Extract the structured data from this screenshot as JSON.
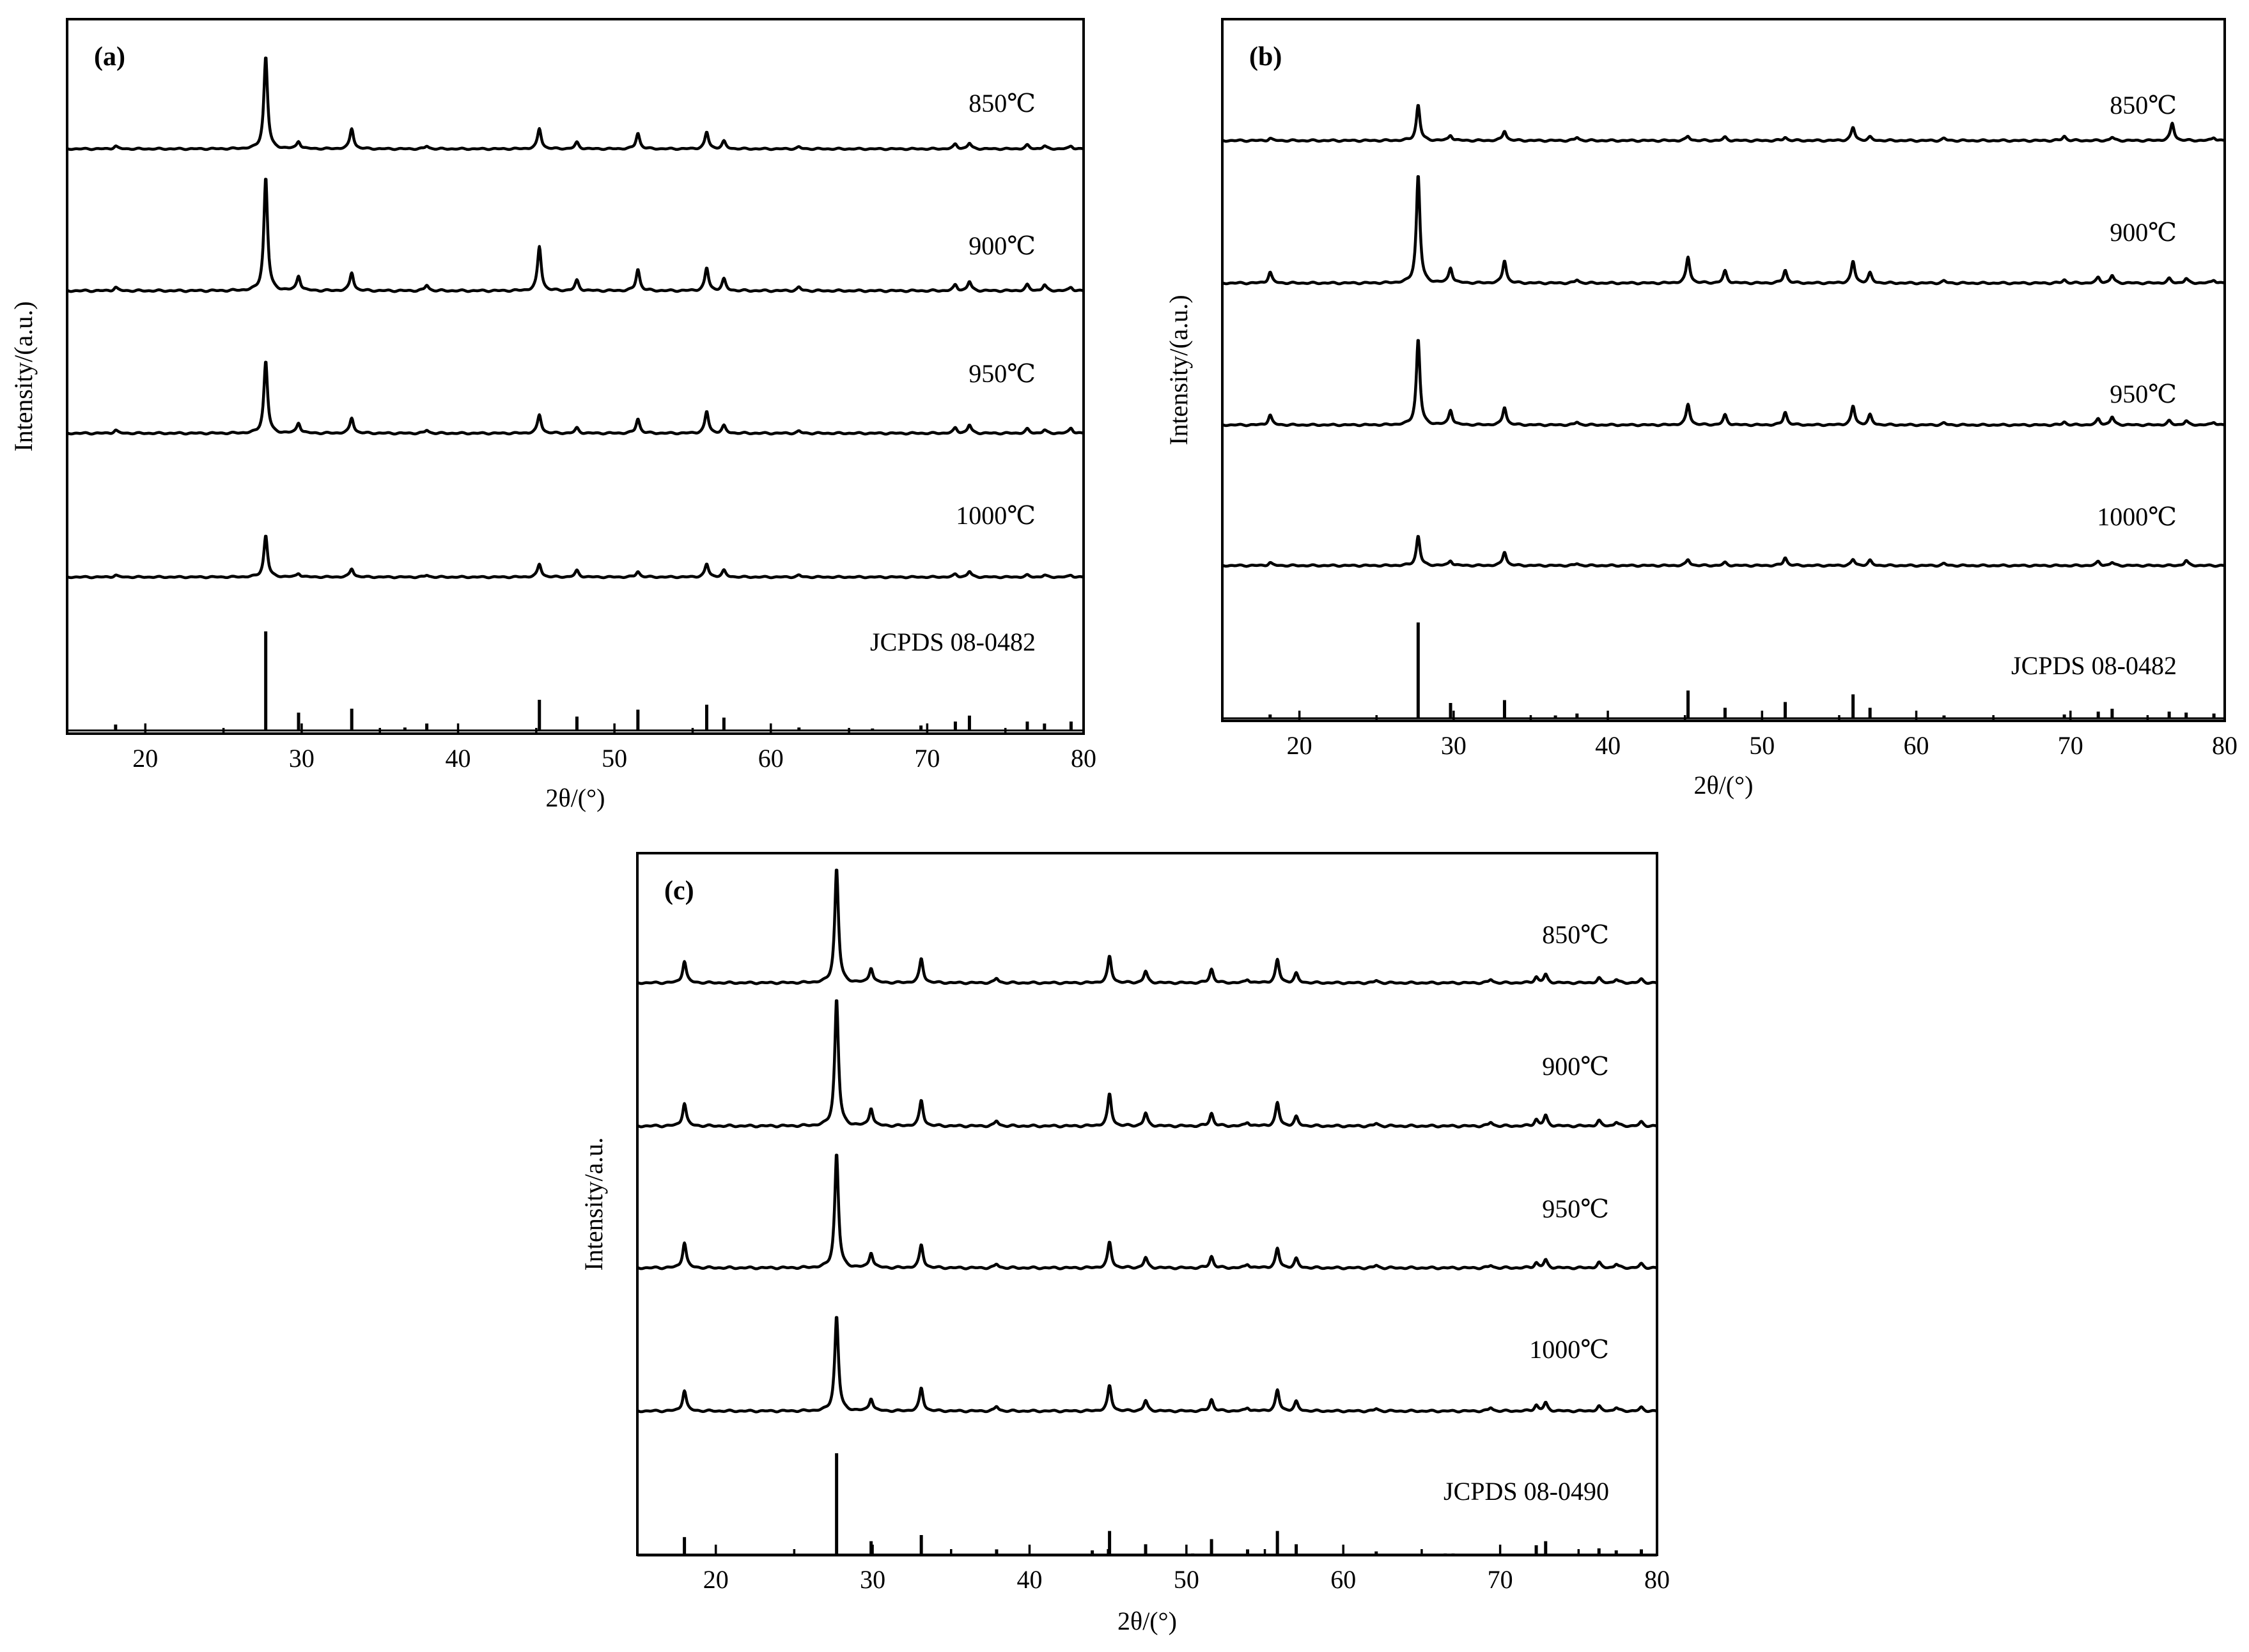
{
  "figure_description_labels": {
    "panels": [
      "(a)",
      "(b)",
      "(c)"
    ]
  },
  "chart_data": [
    {
      "type": "line",
      "panel_label": "(a)",
      "title": "",
      "xlabel": "2θ/(°)",
      "ylabel": "Intensity/(a.u.)",
      "xlim": [
        15,
        80
      ],
      "xticks": [
        20,
        30,
        40,
        50,
        60,
        70,
        80
      ],
      "grid": false,
      "series": [
        {
          "name": "850℃",
          "peaks": [
            [
              18.1,
              0.03
            ],
            [
              27.7,
              1.0
            ],
            [
              29.8,
              0.08
            ],
            [
              33.2,
              0.22
            ],
            [
              38.0,
              0.03
            ],
            [
              45.2,
              0.22
            ],
            [
              47.6,
              0.07
            ],
            [
              51.5,
              0.17
            ],
            [
              55.9,
              0.18
            ],
            [
              57.0,
              0.08
            ],
            [
              61.8,
              0.02
            ],
            [
              71.8,
              0.05
            ],
            [
              72.7,
              0.06
            ],
            [
              76.4,
              0.04
            ],
            [
              77.5,
              0.03
            ],
            [
              79.2,
              0.03
            ]
          ]
        },
        {
          "name": "900℃",
          "peaks": [
            [
              18.1,
              0.03
            ],
            [
              27.7,
              1.0
            ],
            [
              29.8,
              0.13
            ],
            [
              33.2,
              0.16
            ],
            [
              38.0,
              0.05
            ],
            [
              45.2,
              0.39
            ],
            [
              47.6,
              0.09
            ],
            [
              51.5,
              0.19
            ],
            [
              55.9,
              0.2
            ],
            [
              57.0,
              0.1
            ],
            [
              61.8,
              0.03
            ],
            [
              71.8,
              0.05
            ],
            [
              72.7,
              0.08
            ],
            [
              76.4,
              0.05
            ],
            [
              77.5,
              0.05
            ],
            [
              79.2,
              0.03
            ]
          ]
        },
        {
          "name": "950℃",
          "peaks": [
            [
              18.1,
              0.03
            ],
            [
              27.7,
              0.7
            ],
            [
              29.8,
              0.1
            ],
            [
              33.2,
              0.15
            ],
            [
              38.0,
              0.03
            ],
            [
              45.2,
              0.18
            ],
            [
              47.6,
              0.05
            ],
            [
              51.5,
              0.14
            ],
            [
              55.9,
              0.21
            ],
            [
              57.0,
              0.07
            ],
            [
              61.8,
              0.02
            ],
            [
              71.8,
              0.05
            ],
            [
              72.7,
              0.08
            ],
            [
              76.4,
              0.04
            ],
            [
              77.5,
              0.03
            ],
            [
              79.2,
              0.05
            ]
          ]
        },
        {
          "name": "1000℃",
          "peaks": [
            [
              18.1,
              0.02
            ],
            [
              27.7,
              0.45
            ],
            [
              29.8,
              0.04
            ],
            [
              33.2,
              0.09
            ],
            [
              38.0,
              0.02
            ],
            [
              45.2,
              0.14
            ],
            [
              47.6,
              0.07
            ],
            [
              51.5,
              0.06
            ],
            [
              55.9,
              0.14
            ],
            [
              57.0,
              0.07
            ],
            [
              61.8,
              0.02
            ],
            [
              71.8,
              0.03
            ],
            [
              72.7,
              0.06
            ],
            [
              76.4,
              0.02
            ],
            [
              77.5,
              0.02
            ],
            [
              79.2,
              0.02
            ]
          ]
        },
        {
          "name": "JCPDS 08-0482",
          "type": "stick",
          "peaks": [
            [
              18.1,
              0.06
            ],
            [
              27.7,
              1.0
            ],
            [
              29.8,
              0.18
            ],
            [
              33.2,
              0.22
            ],
            [
              36.6,
              0.03
            ],
            [
              38.0,
              0.07
            ],
            [
              45.2,
              0.31
            ],
            [
              47.6,
              0.14
            ],
            [
              51.5,
              0.21
            ],
            [
              55.9,
              0.26
            ],
            [
              57.0,
              0.13
            ],
            [
              61.8,
              0.03
            ],
            [
              66.5,
              0.02
            ],
            [
              69.6,
              0.05
            ],
            [
              71.8,
              0.09
            ],
            [
              72.7,
              0.15
            ],
            [
              76.4,
              0.09
            ],
            [
              77.5,
              0.07
            ],
            [
              79.2,
              0.09
            ]
          ]
        }
      ]
    },
    {
      "type": "line",
      "panel_label": "(b)",
      "title": "",
      "xlabel": "2θ/(°)",
      "ylabel": "Intensity/(a.u.)",
      "xlim": [
        15,
        80
      ],
      "xticks": [
        20,
        30,
        40,
        50,
        60,
        70,
        80
      ],
      "grid": false,
      "series": [
        {
          "name": "850℃",
          "peaks": [
            [
              18.1,
              0.02
            ],
            [
              27.7,
              0.33
            ],
            [
              29.8,
              0.05
            ],
            [
              33.3,
              0.09
            ],
            [
              38.0,
              0.03
            ],
            [
              45.2,
              0.04
            ],
            [
              47.6,
              0.03
            ],
            [
              51.5,
              0.03
            ],
            [
              55.9,
              0.12
            ],
            [
              57.0,
              0.03
            ],
            [
              61.8,
              0.02
            ],
            [
              69.6,
              0.04
            ],
            [
              72.7,
              0.03
            ],
            [
              76.6,
              0.16
            ],
            [
              79.3,
              0.03
            ]
          ]
        },
        {
          "name": "900℃",
          "peaks": [
            [
              18.1,
              0.1
            ],
            [
              27.7,
              1.0
            ],
            [
              29.8,
              0.14
            ],
            [
              33.3,
              0.21
            ],
            [
              38.0,
              0.03
            ],
            [
              45.2,
              0.24
            ],
            [
              47.6,
              0.11
            ],
            [
              51.5,
              0.12
            ],
            [
              55.9,
              0.2
            ],
            [
              57.0,
              0.09
            ],
            [
              61.8,
              0.02
            ],
            [
              69.6,
              0.03
            ],
            [
              71.8,
              0.05
            ],
            [
              72.7,
              0.07
            ],
            [
              76.4,
              0.04
            ],
            [
              77.5,
              0.04
            ],
            [
              79.3,
              0.03
            ]
          ]
        },
        {
          "name": "950℃",
          "peaks": [
            [
              18.1,
              0.1
            ],
            [
              27.7,
              0.87
            ],
            [
              29.8,
              0.15
            ],
            [
              33.3,
              0.18
            ],
            [
              38.0,
              0.03
            ],
            [
              45.2,
              0.21
            ],
            [
              47.6,
              0.1
            ],
            [
              51.5,
              0.13
            ],
            [
              55.9,
              0.19
            ],
            [
              57.0,
              0.1
            ],
            [
              61.8,
              0.02
            ],
            [
              69.6,
              0.03
            ],
            [
              71.8,
              0.06
            ],
            [
              72.7,
              0.08
            ],
            [
              76.4,
              0.04
            ],
            [
              77.5,
              0.04
            ],
            [
              79.3,
              0.03
            ]
          ]
        },
        {
          "name": "1000℃",
          "peaks": [
            [
              18.1,
              0.03
            ],
            [
              27.7,
              0.3
            ],
            [
              29.8,
              0.05
            ],
            [
              33.3,
              0.14
            ],
            [
              38.0,
              0.02
            ],
            [
              45.2,
              0.06
            ],
            [
              47.6,
              0.03
            ],
            [
              51.5,
              0.08
            ],
            [
              55.9,
              0.06
            ],
            [
              57.0,
              0.05
            ],
            [
              61.8,
              0.02
            ],
            [
              71.8,
              0.04
            ],
            [
              72.7,
              0.03
            ],
            [
              77.5,
              0.05
            ]
          ]
        },
        {
          "name": "JCPDS 08-0482",
          "type": "stick",
          "peaks": [
            [
              18.1,
              0.04
            ],
            [
              27.7,
              1.0
            ],
            [
              29.8,
              0.16
            ],
            [
              33.3,
              0.19
            ],
            [
              36.6,
              0.03
            ],
            [
              38.0,
              0.05
            ],
            [
              45.2,
              0.29
            ],
            [
              47.6,
              0.11
            ],
            [
              51.5,
              0.17
            ],
            [
              55.9,
              0.25
            ],
            [
              57.0,
              0.11
            ],
            [
              61.8,
              0.03
            ],
            [
              69.6,
              0.04
            ],
            [
              71.8,
              0.07
            ],
            [
              72.7,
              0.1
            ],
            [
              76.4,
              0.07
            ],
            [
              77.5,
              0.06
            ],
            [
              79.3,
              0.05
            ]
          ]
        }
      ]
    },
    {
      "type": "line",
      "panel_label": "(c)",
      "title": "",
      "xlabel": "2θ/(°)",
      "ylabel": "Intensity/a.u.",
      "xlim": [
        15,
        80
      ],
      "xticks": [
        20,
        30,
        40,
        50,
        60,
        70,
        80
      ],
      "grid": false,
      "series": [
        {
          "name": "850℃",
          "peaks": [
            [
              18.0,
              0.19
            ],
            [
              27.7,
              1.0
            ],
            [
              29.9,
              0.13
            ],
            [
              33.1,
              0.21
            ],
            [
              37.9,
              0.04
            ],
            [
              45.1,
              0.23
            ],
            [
              47.4,
              0.1
            ],
            [
              51.6,
              0.12
            ],
            [
              53.9,
              0.03
            ],
            [
              55.8,
              0.2
            ],
            [
              57.0,
              0.08
            ],
            [
              62.1,
              0.02
            ],
            [
              69.4,
              0.03
            ],
            [
              72.3,
              0.05
            ],
            [
              72.9,
              0.07
            ],
            [
              76.3,
              0.04
            ],
            [
              77.4,
              0.03
            ],
            [
              79.0,
              0.03
            ]
          ]
        },
        {
          "name": "900℃",
          "peaks": [
            [
              18.0,
              0.18
            ],
            [
              27.7,
              1.0
            ],
            [
              29.9,
              0.14
            ],
            [
              33.1,
              0.2
            ],
            [
              37.9,
              0.04
            ],
            [
              45.1,
              0.25
            ],
            [
              47.4,
              0.1
            ],
            [
              51.6,
              0.1
            ],
            [
              53.9,
              0.03
            ],
            [
              55.8,
              0.18
            ],
            [
              57.0,
              0.07
            ],
            [
              62.1,
              0.02
            ],
            [
              69.4,
              0.03
            ],
            [
              72.3,
              0.05
            ],
            [
              72.9,
              0.08
            ],
            [
              76.3,
              0.04
            ],
            [
              77.4,
              0.03
            ],
            [
              79.0,
              0.03
            ]
          ]
        },
        {
          "name": "950℃",
          "peaks": [
            [
              18.0,
              0.2
            ],
            [
              27.7,
              0.9
            ],
            [
              29.9,
              0.12
            ],
            [
              33.1,
              0.18
            ],
            [
              37.9,
              0.03
            ],
            [
              45.1,
              0.2
            ],
            [
              47.4,
              0.08
            ],
            [
              51.6,
              0.09
            ],
            [
              53.9,
              0.03
            ],
            [
              55.8,
              0.15
            ],
            [
              57.0,
              0.07
            ],
            [
              62.1,
              0.02
            ],
            [
              69.4,
              0.02
            ],
            [
              72.3,
              0.04
            ],
            [
              72.9,
              0.06
            ],
            [
              76.3,
              0.04
            ],
            [
              77.4,
              0.03
            ],
            [
              79.0,
              0.03
            ]
          ]
        },
        {
          "name": "1000℃",
          "peaks": [
            [
              18.0,
              0.18
            ],
            [
              27.7,
              0.83
            ],
            [
              29.9,
              0.11
            ],
            [
              33.1,
              0.2
            ],
            [
              37.9,
              0.04
            ],
            [
              45.1,
              0.22
            ],
            [
              47.4,
              0.09
            ],
            [
              51.6,
              0.1
            ],
            [
              53.9,
              0.03
            ],
            [
              55.8,
              0.18
            ],
            [
              57.0,
              0.08
            ],
            [
              62.1,
              0.02
            ],
            [
              69.4,
              0.03
            ],
            [
              72.3,
              0.05
            ],
            [
              72.9,
              0.07
            ],
            [
              76.3,
              0.04
            ],
            [
              77.4,
              0.03
            ],
            [
              79.0,
              0.03
            ]
          ]
        },
        {
          "name": "JCPDS 08-0490",
          "type": "stick",
          "peaks": [
            [
              18.0,
              0.18
            ],
            [
              27.7,
              1.0
            ],
            [
              29.9,
              0.14
            ],
            [
              33.1,
              0.2
            ],
            [
              37.9,
              0.06
            ],
            [
              44.0,
              0.05
            ],
            [
              45.1,
              0.24
            ],
            [
              47.4,
              0.11
            ],
            [
              50.4,
              0.02
            ],
            [
              51.6,
              0.16
            ],
            [
              53.9,
              0.06
            ],
            [
              55.8,
              0.24
            ],
            [
              57.0,
              0.11
            ],
            [
              62.1,
              0.04
            ],
            [
              66.5,
              0.02
            ],
            [
              67.0,
              0.02
            ],
            [
              72.3,
              0.1
            ],
            [
              72.9,
              0.14
            ],
            [
              76.3,
              0.07
            ],
            [
              77.4,
              0.05
            ],
            [
              79.0,
              0.06
            ]
          ]
        }
      ]
    }
  ]
}
